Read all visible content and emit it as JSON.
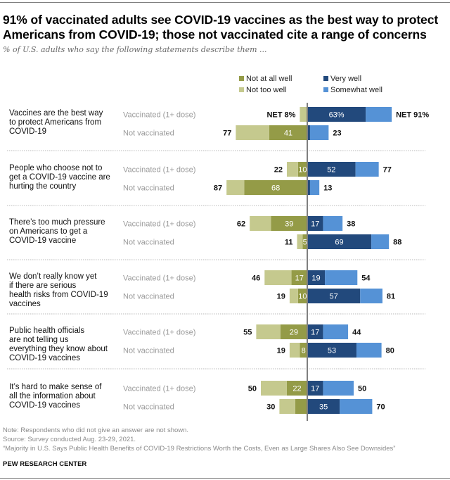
{
  "header": {
    "title": "91% of vaccinated adults see COVID-19 vaccines as the best way to protect Americans from COVID-19; those not vaccinated cite a range of concerns",
    "subtitle": "% of U.S. adults who say the following statements describe them ..."
  },
  "legend": {
    "not_at_all_well": "Not at all well",
    "not_too_well": "Not too well",
    "very_well": "Very well",
    "somewhat_well": "Somewhat well"
  },
  "colors": {
    "not_at_all_well": "#949b47",
    "not_too_well": "#c5c98e",
    "very_well": "#22497c",
    "somewhat_well": "#5592d6",
    "axis": "#7f7f7f",
    "divider": "#c8c8c8"
  },
  "chart_data": {
    "type": "bar",
    "subtype": "diverging-stacked",
    "title": "91% of vaccinated adults see COVID-19 vaccines as the best way to protect Americans from COVID-19; those not vaccinated cite a range of concerns",
    "subtitle": "% of U.S. adults who say the following statements describe them ...",
    "xlabel": "",
    "ylabel": "",
    "xlim": [
      -100,
      100
    ],
    "legend_position": "top-right",
    "series_names": [
      "Not at all well",
      "Not too well",
      "Very well",
      "Somewhat well"
    ],
    "estimate_note": "Segments with a null value are not labeled in the source chart. est_width is a pixel-measured approximation used only to draw the bar, not a published figure.",
    "groups": [
      {
        "question": "Vaccines are the best way to protect Americans from COVID-19",
        "rows": [
          {
            "group": "Vaccinated (1+ dose)",
            "not_at_all": null,
            "not_at_all_est_width": 1,
            "not_too": null,
            "not_too_est_width": 7,
            "net_negative": "NET 8%",
            "very": 63,
            "very_label": "63%",
            "somewhat": 28,
            "net_positive": "NET 91%"
          },
          {
            "group": "Not vaccinated",
            "not_at_all": 41,
            "not_too": 36,
            "net_negative": "77",
            "very": null,
            "very_est_width": 3,
            "somewhat": 20,
            "net_positive": "23"
          }
        ]
      },
      {
        "question": "People who choose not to get a COVID-19 vaccine are hurting the country",
        "rows": [
          {
            "group": "Vaccinated (1+ dose)",
            "not_at_all": 10,
            "not_too": 12,
            "net_negative": "22",
            "very": 52,
            "somewhat": 25,
            "net_positive": "77"
          },
          {
            "group": "Not vaccinated",
            "not_at_all": 68,
            "not_too": 19,
            "net_negative": "87",
            "very": null,
            "very_est_width": 3,
            "somewhat": 10,
            "net_positive": "13"
          }
        ]
      },
      {
        "question": "There’s too much pressure on Americans to get a COVID-19 vaccine",
        "rows": [
          {
            "group": "Vaccinated (1+ dose)",
            "not_at_all": 39,
            "not_too": 23,
            "net_negative": "62",
            "very": 17,
            "somewhat": 21,
            "net_positive": "38"
          },
          {
            "group": "Not vaccinated",
            "not_at_all": 5,
            "not_too": 6,
            "net_negative": "11",
            "very": 69,
            "somewhat": 19,
            "net_positive": "88"
          }
        ]
      },
      {
        "question": "We don’t really know yet if there are serious health risks from COVID-19 vaccines",
        "rows": [
          {
            "group": "Vaccinated (1+ dose)",
            "not_at_all": 17,
            "not_too": 29,
            "net_negative": "46",
            "very": 19,
            "somewhat": 35,
            "net_positive": "54"
          },
          {
            "group": "Not vaccinated",
            "not_at_all": 10,
            "not_too": 9,
            "net_negative": "19",
            "very": 57,
            "somewhat": 24,
            "net_positive": "81"
          }
        ]
      },
      {
        "question": "Public health officials are not telling us everything they know about COVID-19 vaccines",
        "rows": [
          {
            "group": "Vaccinated (1+ dose)",
            "not_at_all": 29,
            "not_too": 26,
            "net_negative": "55",
            "very": 17,
            "somewhat": 27,
            "net_positive": "44"
          },
          {
            "group": "Not vaccinated",
            "not_at_all": 8,
            "not_too": 11,
            "net_negative": "19",
            "very": 53,
            "somewhat": 27,
            "net_positive": "80"
          }
        ]
      },
      {
        "question": "It’s hard to make sense of all the information about COVID-19 vaccines",
        "rows": [
          {
            "group": "Vaccinated (1+ dose)",
            "not_at_all": 22,
            "not_too": 28,
            "net_negative": "50",
            "very": 17,
            "somewhat": 33,
            "net_positive": "50"
          },
          {
            "group": "Not vaccinated",
            "not_at_all": null,
            "not_at_all_est_width": 13,
            "not_too": null,
            "not_too_est_width": 17,
            "net_negative": "30",
            "very": 35,
            "somewhat": 35,
            "net_positive": "70"
          }
        ]
      }
    ]
  },
  "footer": {
    "note": "Note: Respondents who did not give an answer are not shown.",
    "source": "Source: Survey conducted Aug. 23-29, 2021.",
    "report": "“Majority in U.S. Says Public Health Benefits of COVID-19 Restrictions Worth the Costs, Even as Large Shares Also See Downsides”",
    "org": "PEW RESEARCH CENTER"
  }
}
